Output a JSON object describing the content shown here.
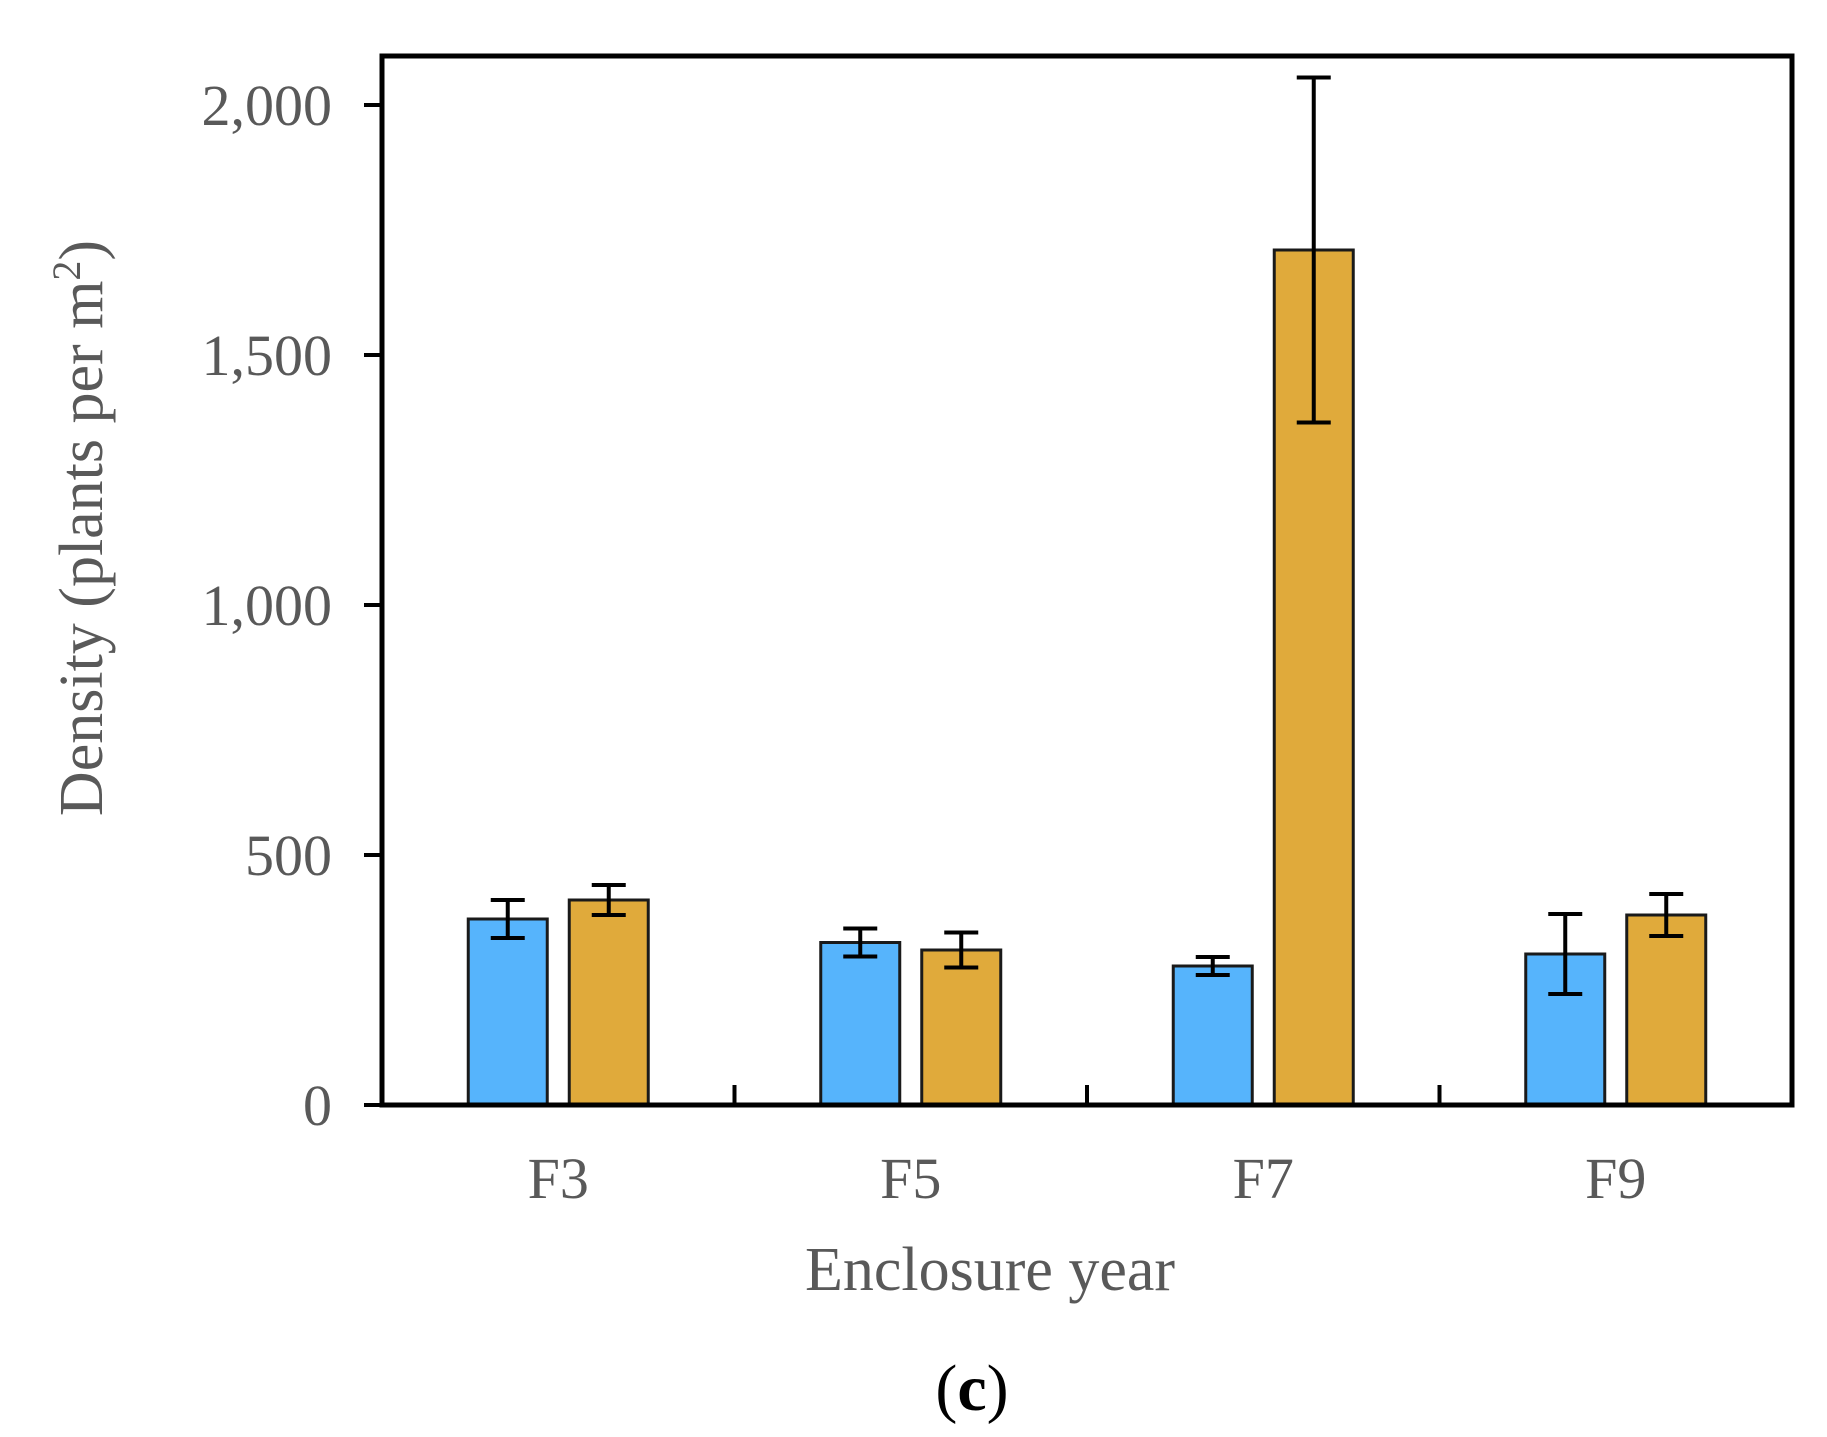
{
  "chart_data": {
    "type": "bar",
    "title": "",
    "xlabel": "Enclosure year",
    "ylabel": "Density (plants per m",
    "ylabel_superscript": "2",
    "ylabel_close": ")",
    "panel_label_open": "(",
    "panel_label_letter": "c",
    "panel_label_close": ")",
    "categories": [
      "F3",
      "F5",
      "F7",
      "F9"
    ],
    "ylim": [
      0,
      2100
    ],
    "yticks": [
      0,
      500,
      1000,
      1500,
      2000
    ],
    "ytick_labels": [
      "0",
      "500",
      "1,000",
      "1,500",
      "2,000"
    ],
    "grid": false,
    "legend": "none",
    "series": [
      {
        "name": "series 1",
        "color": "#56b4fc",
        "values": [
          372,
          325,
          278,
          302
        ],
        "errors": [
          38,
          28,
          18,
          80
        ]
      },
      {
        "name": "series 2",
        "color": "#e0aa3b",
        "values": [
          410,
          310,
          1710,
          380
        ],
        "errors": [
          30,
          35,
          345,
          42
        ]
      }
    ]
  }
}
